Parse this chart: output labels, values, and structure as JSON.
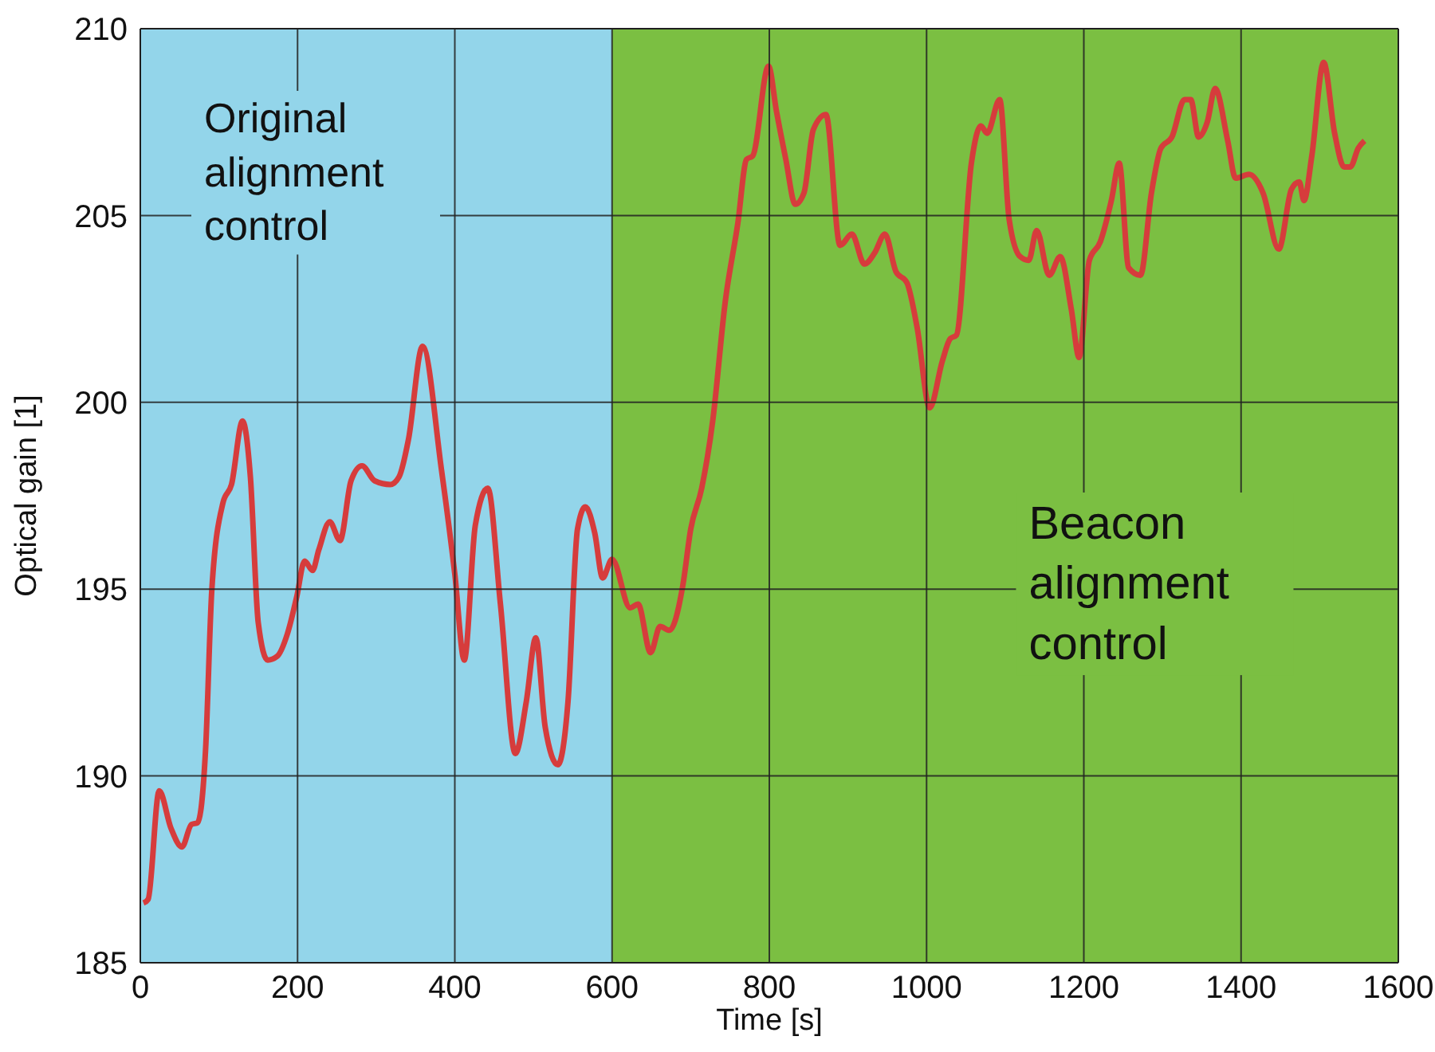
{
  "chart_data": {
    "type": "line",
    "xlabel": "Time [s]",
    "ylabel": "Optical gain [1]",
    "xlim": [
      0,
      1600
    ],
    "xticks": [
      0,
      200,
      400,
      600,
      800,
      1000,
      1200,
      1400,
      1600
    ],
    "ylim": [
      185,
      210
    ],
    "yticks": [
      185,
      190,
      195,
      200,
      205,
      210
    ],
    "grid": true,
    "marker": "none",
    "line_style": "solid",
    "bands": [
      {
        "axis": "x",
        "from": 0,
        "to": 600,
        "label": "Original alignment control",
        "color": "#93d5ea"
      },
      {
        "axis": "x",
        "from": 600,
        "to": 1600,
        "label": "Beacon alignment control",
        "color": "#7bbf42"
      }
    ],
    "series": [
      {
        "color": "#d63c3c",
        "x": [
          4,
          10,
          24,
          39,
          53,
          65,
          73,
          83,
          91,
          105,
          116,
          130,
          140,
          150,
          162,
          174,
          187,
          199,
          209,
          219,
          227,
          241,
          254,
          268,
          282,
          298,
          318,
          329,
          341,
          359,
          383,
          400,
          412,
          426,
          442,
          458,
          477,
          491,
          503,
          515,
          531,
          544,
          556,
          566,
          578,
          588,
          600,
          623,
          633,
          649,
          661,
          673,
          690,
          700,
          714,
          728,
          744,
          760,
          771,
          779,
          799,
          809,
          821,
          833,
          844,
          856,
          872,
          890,
          905,
          921,
          934,
          947,
          961,
          975,
          988,
          1004,
          1020,
          1030,
          1038,
          1057,
          1069,
          1077,
          1093,
          1105,
          1119,
          1130,
          1140,
          1156,
          1170,
          1184,
          1194,
          1207,
          1221,
          1235,
          1245,
          1257,
          1272,
          1286,
          1298,
          1312,
          1328,
          1336,
          1346,
          1357,
          1367,
          1383,
          1393,
          1410,
          1428,
          1448,
          1464,
          1474,
          1480,
          1490,
          1505,
          1519,
          1531,
          1539,
          1549,
          1557
        ],
        "values": [
          186.6,
          186.7,
          189.6,
          188.6,
          188.1,
          188.7,
          188.75,
          190.7,
          195,
          197.3,
          197.8,
          199.5,
          198,
          194.1,
          193.1,
          193.2,
          193.8,
          194.8,
          195.75,
          195.5,
          196.05,
          196.8,
          196.3,
          197.9,
          198.3,
          197.9,
          197.8,
          198,
          199,
          201.5,
          198.2,
          195.4,
          193.1,
          196.7,
          197.7,
          194.6,
          190.6,
          192,
          193.7,
          191.3,
          190.3,
          192,
          196.6,
          197.2,
          196.5,
          195.3,
          195.8,
          194.5,
          194.6,
          193.3,
          194,
          193.9,
          195.1,
          196.6,
          197.7,
          199.5,
          202.7,
          204.8,
          206.5,
          206.6,
          209,
          207.8,
          206.5,
          205.3,
          205.6,
          207.3,
          207.7,
          204.2,
          204.5,
          203.7,
          204,
          204.5,
          203.5,
          203.2,
          202,
          199.85,
          201.1,
          201.7,
          201.8,
          206.4,
          207.4,
          207.2,
          208.1,
          204.9,
          203.9,
          203.8,
          204.6,
          203.4,
          203.9,
          202.5,
          201.2,
          203.8,
          204.3,
          205.4,
          206.4,
          203.6,
          203.4,
          205.6,
          206.8,
          207.1,
          208.1,
          208.1,
          207.1,
          207.5,
          208.4,
          207,
          206,
          206.1,
          205.6,
          204.1,
          205.7,
          205.9,
          205.4,
          206.6,
          209.1,
          207.2,
          206.3,
          206.3,
          206.8,
          207
        ]
      }
    ]
  }
}
